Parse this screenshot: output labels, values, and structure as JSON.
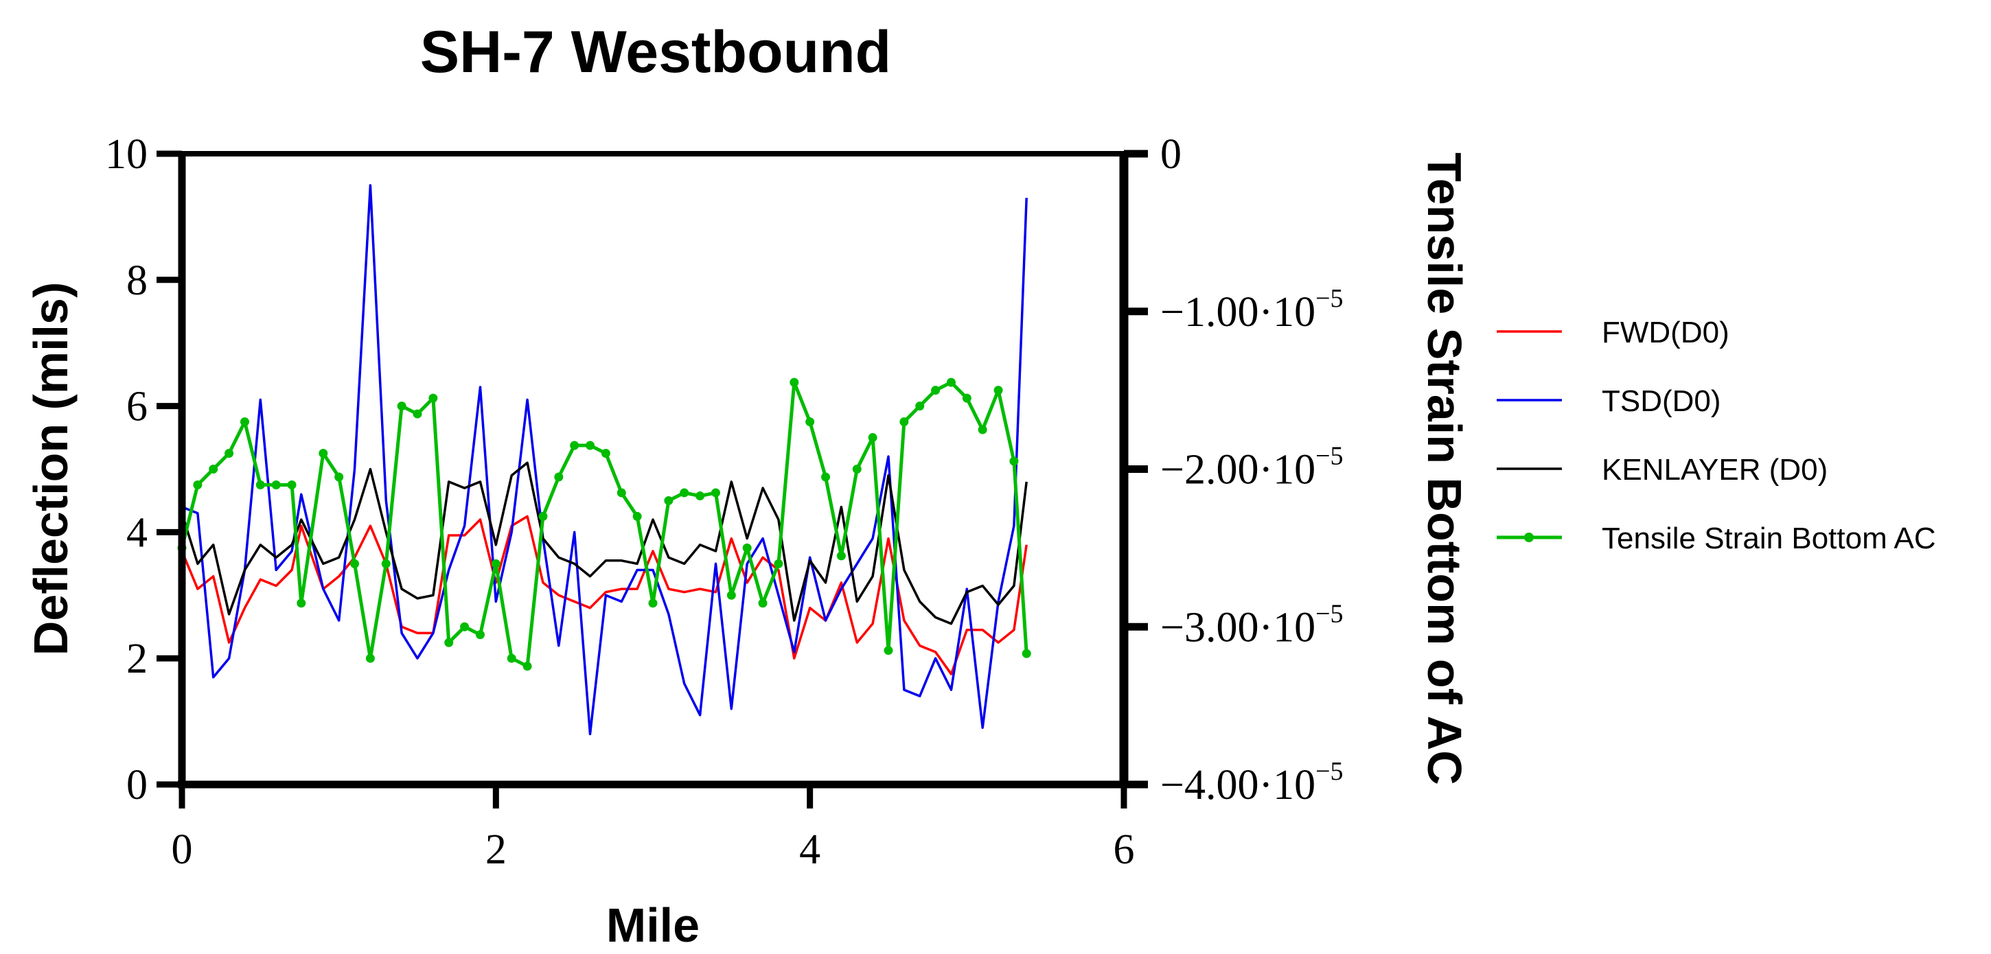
{
  "chart_data": {
    "type": "line",
    "title": "SH-7 Westbound",
    "xlabel": "Mile",
    "ylabel": "Deflection (mils)",
    "y2label": "Tensile Strain Bottom of AC",
    "xlim": [
      0,
      6
    ],
    "ylim": [
      0,
      10
    ],
    "y2lim": [
      -4e-05,
      0
    ],
    "x_ticks": [
      "0",
      "2",
      "4",
      "6"
    ],
    "y_ticks": [
      "0",
      "2",
      "4",
      "6",
      "8",
      "10"
    ],
    "y2_ticks": [
      {
        "mant": "0",
        "exp": ""
      },
      {
        "mant": "−1.00·10",
        "exp": "−5"
      },
      {
        "mant": "−2.00·10",
        "exp": "−5"
      },
      {
        "mant": "−3.00·10",
        "exp": "−5"
      },
      {
        "mant": "−4.00·10",
        "exp": "−5"
      }
    ],
    "grid": false,
    "legend_position": "right",
    "x": [
      0.0,
      0.1,
      0.2,
      0.3,
      0.4,
      0.5,
      0.6,
      0.7,
      0.76,
      0.9,
      1.0,
      1.1,
      1.2,
      1.3,
      1.4,
      1.5,
      1.6,
      1.7,
      1.8,
      1.9,
      2.0,
      2.1,
      2.2,
      2.3,
      2.4,
      2.5,
      2.6,
      2.7,
      2.8,
      2.9,
      3.0,
      3.1,
      3.2,
      3.3,
      3.4,
      3.5,
      3.6,
      3.7,
      3.8,
      3.9,
      4.0,
      4.1,
      4.2,
      4.3,
      4.4,
      4.5,
      4.6,
      4.7,
      4.8,
      4.9,
      5.0,
      5.1,
      5.2,
      5.3,
      5.38
    ],
    "series": [
      {
        "name": "FWD(D0)",
        "color": "#ff0000",
        "axis": "left",
        "values": [
          3.7,
          3.1,
          3.3,
          2.25,
          2.8,
          3.25,
          3.15,
          3.4,
          4.1,
          3.1,
          3.3,
          3.6,
          4.1,
          3.5,
          2.5,
          2.4,
          2.4,
          3.95,
          3.95,
          4.2,
          3.2,
          4.1,
          4.25,
          3.2,
          3.0,
          2.9,
          2.8,
          3.05,
          3.1,
          3.1,
          3.7,
          3.1,
          3.05,
          3.1,
          3.05,
          3.9,
          3.2,
          3.6,
          3.4,
          2.0,
          2.8,
          2.6,
          3.2,
          2.25,
          2.55,
          3.9,
          2.6,
          2.2,
          2.1,
          1.75,
          2.45,
          2.45,
          2.25,
          2.45,
          3.8
        ]
      },
      {
        "name": "TSD(D0)",
        "color": "#0000ee",
        "axis": "left",
        "values": [
          4.4,
          4.3,
          1.7,
          2.0,
          3.4,
          6.1,
          3.4,
          3.7,
          4.6,
          3.1,
          2.6,
          5.0,
          9.5,
          4.5,
          2.4,
          2.0,
          2.4,
          3.4,
          4.1,
          6.3,
          2.9,
          4.0,
          6.1,
          3.9,
          2.2,
          4.0,
          0.8,
          3.0,
          2.9,
          3.4,
          3.4,
          2.7,
          1.6,
          1.1,
          3.5,
          1.2,
          3.5,
          3.9,
          3.0,
          2.1,
          3.6,
          2.6,
          3.1,
          3.5,
          3.9,
          5.2,
          1.5,
          1.4,
          2.0,
          1.5,
          3.1,
          0.9,
          2.9,
          4.1,
          9.3
        ]
      },
      {
        "name": "KENLAYER (D0)",
        "color": "#000000",
        "axis": "left",
        "values": [
          4.3,
          3.5,
          3.8,
          2.7,
          3.4,
          3.8,
          3.6,
          3.8,
          4.2,
          3.5,
          3.6,
          4.2,
          5.0,
          4.0,
          3.1,
          2.95,
          3.0,
          4.8,
          4.7,
          4.8,
          3.8,
          4.9,
          5.1,
          3.9,
          3.6,
          3.5,
          3.3,
          3.55,
          3.55,
          3.5,
          4.2,
          3.6,
          3.5,
          3.8,
          3.7,
          4.8,
          3.9,
          4.7,
          4.2,
          2.6,
          3.55,
          3.2,
          4.4,
          2.9,
          3.3,
          4.9,
          3.4,
          2.9,
          2.65,
          2.55,
          3.05,
          3.15,
          2.85,
          3.15,
          4.8
        ]
      },
      {
        "name": "Tensile Strain Bottom AC",
        "color": "#00bb00",
        "axis": "right",
        "marker": "circle",
        "values": [
          -2.5e-05,
          -2.1e-05,
          -2e-05,
          -1.9e-05,
          -1.7e-05,
          -2.1e-05,
          -2.1e-05,
          -2.1e-05,
          -2.85e-05,
          -1.9e-05,
          -2.05e-05,
          -2.6e-05,
          -3.2e-05,
          -2.6e-05,
          -1.6e-05,
          -1.65e-05,
          -1.55e-05,
          -3.1e-05,
          -3e-05,
          -3.05e-05,
          -2.6e-05,
          -3.2e-05,
          -3.25e-05,
          -2.3e-05,
          -2.05e-05,
          -1.85e-05,
          -1.85e-05,
          -1.9e-05,
          -2.15e-05,
          -2.3e-05,
          -2.85e-05,
          -2.2e-05,
          -2.15e-05,
          -2.17e-05,
          -2.15e-05,
          -2.8e-05,
          -2.5e-05,
          -2.85e-05,
          -2.6e-05,
          -1.45e-05,
          -1.7e-05,
          -2.05e-05,
          -2.55e-05,
          -2e-05,
          -1.8e-05,
          -3.15e-05,
          -1.7e-05,
          -1.6e-05,
          -1.5e-05,
          -1.45e-05,
          -1.55e-05,
          -1.75e-05,
          -1.5e-05,
          -1.95e-05,
          -3.17e-05
        ]
      }
    ]
  }
}
